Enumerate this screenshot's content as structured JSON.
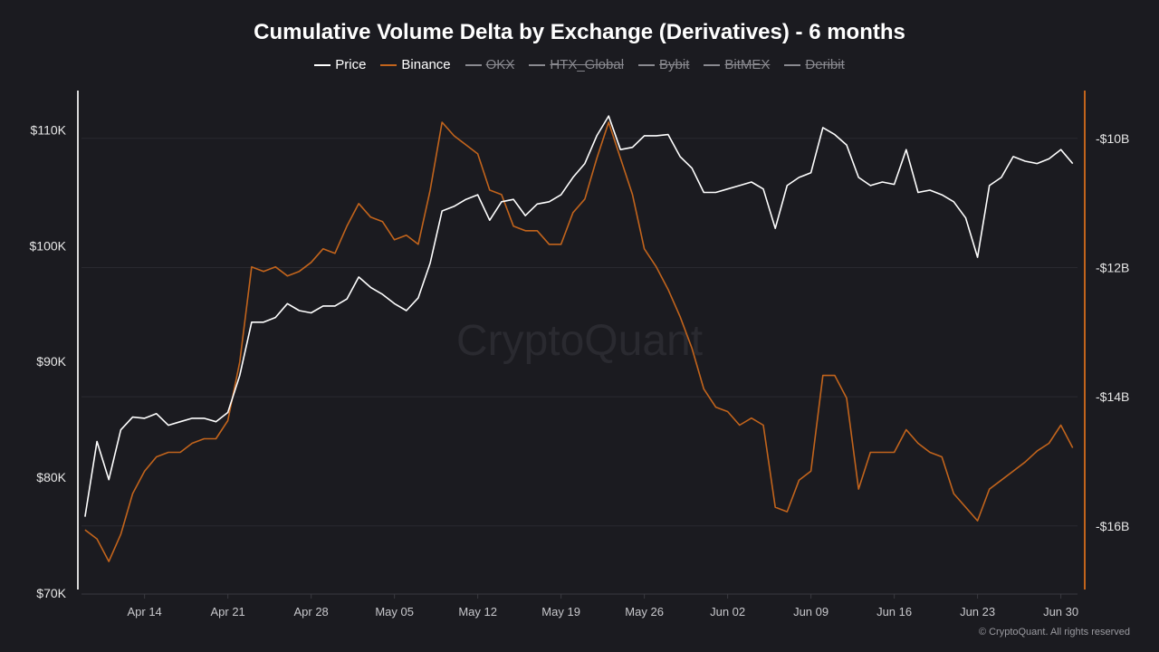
{
  "title": "Cumulative Volume Delta by Exchange (Derivatives) - 6 months",
  "legend": [
    {
      "label": "Price",
      "color": "#ffffff",
      "active": true
    },
    {
      "label": "Binance",
      "color": "#c2641c",
      "active": true
    },
    {
      "label": "OKX",
      "color": "#8a8a90",
      "active": false
    },
    {
      "label": "HTX_Global",
      "color": "#8a8a90",
      "active": false
    },
    {
      "label": "Bybit",
      "color": "#8a8a90",
      "active": false
    },
    {
      "label": "BitMEX",
      "color": "#8a8a90",
      "active": false
    },
    {
      "label": "Deribit",
      "color": "#8a8a90",
      "active": false
    }
  ],
  "watermark": "CryptoQuant",
  "footer": "© CryptoQuant. All rights reserved",
  "chart_data": {
    "type": "line",
    "title": "Cumulative Volume Delta by Exchange (Derivatives) - 6 months",
    "x_ticks": [
      "Apr 14",
      "Apr 21",
      "Apr 28",
      "May 05",
      "May 12",
      "May 19",
      "May 26",
      "Jun 02",
      "Jun 09",
      "Jun 16",
      "Jun 23",
      "Jun 30"
    ],
    "x_range": [
      "Apr 09",
      "Jul 01"
    ],
    "y_left": {
      "ticks": [
        "$70K",
        "$80K",
        "$90K",
        "$100K",
        "$110K"
      ],
      "tick_values": [
        70,
        80,
        90,
        100,
        110
      ],
      "range": [
        70,
        113.4
      ],
      "unit": "thousand USD"
    },
    "y_right": {
      "ticks": [
        "-$10B",
        "-$12B",
        "-$14B",
        "-$16B"
      ],
      "tick_values": [
        -10,
        -12,
        -14,
        -16
      ],
      "range": [
        -17.04,
        -9.26
      ],
      "unit": "billion USD"
    },
    "grid": true,
    "legend_placement": "top-center",
    "x": [
      "Apr 09",
      "Apr 10",
      "Apr 11",
      "Apr 12",
      "Apr 13",
      "Apr 14",
      "Apr 15",
      "Apr 16",
      "Apr 17",
      "Apr 18",
      "Apr 19",
      "Apr 20",
      "Apr 21",
      "Apr 22",
      "Apr 23",
      "Apr 24",
      "Apr 25",
      "Apr 26",
      "Apr 27",
      "Apr 28",
      "Apr 29",
      "Apr 30",
      "May 01",
      "May 02",
      "May 03",
      "May 04",
      "May 05",
      "May 06",
      "May 07",
      "May 08",
      "May 09",
      "May 10",
      "May 11",
      "May 12",
      "May 13",
      "May 14",
      "May 15",
      "May 16",
      "May 17",
      "May 18",
      "May 19",
      "May 20",
      "May 21",
      "May 22",
      "May 23",
      "May 24",
      "May 25",
      "May 26",
      "May 27",
      "May 28",
      "May 29",
      "May 30",
      "May 31",
      "Jun 01",
      "Jun 02",
      "Jun 03",
      "Jun 04",
      "Jun 05",
      "Jun 06",
      "Jun 07",
      "Jun 08",
      "Jun 09",
      "Jun 10",
      "Jun 11",
      "Jun 12",
      "Jun 13",
      "Jun 14",
      "Jun 15",
      "Jun 16",
      "Jun 17",
      "Jun 18",
      "Jun 19",
      "Jun 20",
      "Jun 21",
      "Jun 22",
      "Jun 23",
      "Jun 24",
      "Jun 25",
      "Jun 26",
      "Jun 27",
      "Jun 28",
      "Jun 29",
      "Jun 30",
      "Jul 01"
    ],
    "series": [
      {
        "name": "Price",
        "axis": "left",
        "color": "#ffffff",
        "values": [
          76.6,
          83.1,
          79.8,
          84.1,
          85.2,
          85.1,
          85.5,
          84.5,
          84.8,
          85.1,
          85.1,
          84.8,
          85.6,
          88.8,
          93.4,
          93.4,
          93.8,
          95.0,
          94.4,
          94.2,
          94.8,
          94.8,
          95.4,
          97.3,
          96.4,
          95.8,
          95.0,
          94.4,
          95.5,
          98.5,
          103.0,
          103.4,
          104.0,
          104.4,
          102.2,
          103.8,
          104.0,
          102.6,
          103.6,
          103.8,
          104.4,
          105.9,
          107.1,
          109.5,
          111.2,
          108.3,
          108.5,
          109.5,
          109.5,
          109.6,
          107.7,
          106.7,
          104.6,
          104.6,
          104.9,
          105.2,
          105.5,
          104.9,
          101.5,
          105.2,
          105.9,
          106.3,
          110.2,
          109.6,
          108.7,
          105.9,
          105.2,
          105.5,
          105.3,
          108.3,
          104.6,
          104.8,
          104.4,
          103.8,
          102.4,
          99.0,
          105.2,
          105.9,
          107.7,
          107.3,
          107.1,
          107.5,
          108.3,
          107.1
        ]
      },
      {
        "name": "Binance",
        "axis": "right",
        "color": "#c2641c",
        "values": [
          -16.06,
          -16.2,
          -16.55,
          -16.13,
          -15.5,
          -15.15,
          -14.93,
          -14.86,
          -14.86,
          -14.72,
          -14.65,
          -14.65,
          -14.37,
          -13.46,
          -11.99,
          -12.06,
          -11.99,
          -12.13,
          -12.06,
          -11.92,
          -11.71,
          -11.78,
          -11.36,
          -11.01,
          -11.22,
          -11.29,
          -11.57,
          -11.5,
          -11.64,
          -10.8,
          -9.75,
          -9.96,
          -10.1,
          -10.24,
          -10.8,
          -10.87,
          -11.36,
          -11.43,
          -11.43,
          -11.64,
          -11.64,
          -11.15,
          -10.94,
          -10.31,
          -9.75,
          -10.31,
          -10.87,
          -11.71,
          -11.99,
          -12.34,
          -12.76,
          -13.25,
          -13.88,
          -14.16,
          -14.23,
          -14.44,
          -14.33,
          -14.44,
          -15.71,
          -15.78,
          -15.29,
          -15.15,
          -13.67,
          -13.67,
          -14.02,
          -15.43,
          -14.86,
          -14.86,
          -14.86,
          -14.51,
          -14.72,
          -14.86,
          -14.93,
          -15.5,
          -15.71,
          -15.92,
          -15.43,
          -15.29,
          -15.15,
          -15.01,
          -14.84,
          -14.72,
          -14.44,
          -14.79
        ]
      }
    ]
  }
}
